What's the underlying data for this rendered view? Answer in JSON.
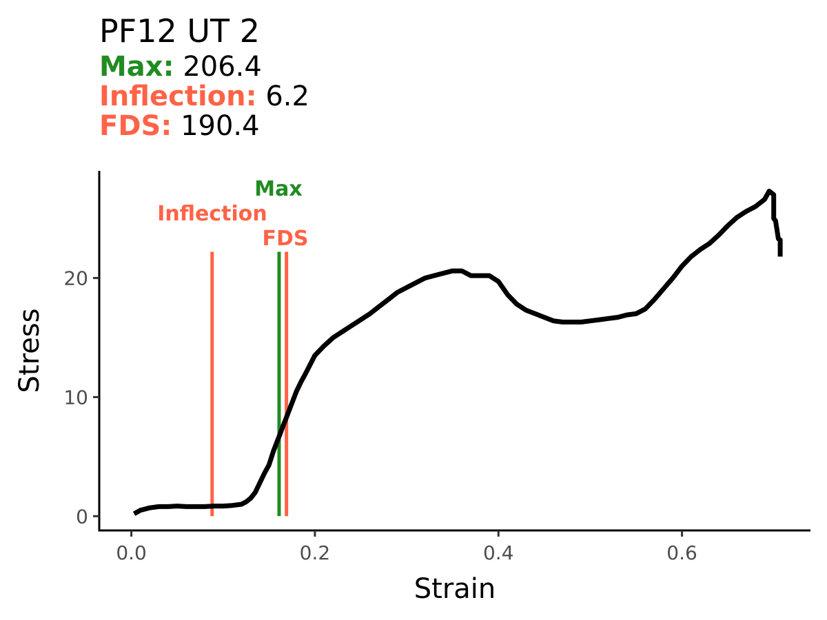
{
  "header": {
    "title": "PF12 UT 2",
    "metrics": [
      {
        "label": "Max:",
        "value": "206.4",
        "color": "#228B22"
      },
      {
        "label": "Inflection:",
        "value": "6.2",
        "color": "#FF6347"
      },
      {
        "label": "FDS:",
        "value": "190.4",
        "color": "#FF6347"
      }
    ]
  },
  "chart_data": {
    "type": "line",
    "title": "PF12 UT 2",
    "xlabel": "Strain",
    "ylabel": "Stress",
    "xlim": [
      -0.035,
      0.74
    ],
    "ylim": [
      -1.2,
      29
    ],
    "xticks": [
      0.0,
      0.2,
      0.4,
      0.6
    ],
    "xtick_labels": [
      "0.0",
      "0.2",
      "0.4",
      "0.6"
    ],
    "yticks": [
      0,
      10,
      20
    ],
    "ytick_labels": [
      "0",
      "10",
      "20"
    ],
    "grid": false,
    "series": [
      {
        "color": "#000000",
        "x": [
          0.003,
          0.01,
          0.02,
          0.03,
          0.04,
          0.05,
          0.06,
          0.07,
          0.08,
          0.09,
          0.1,
          0.11,
          0.12,
          0.125,
          0.13,
          0.135,
          0.14,
          0.145,
          0.15,
          0.155,
          0.16,
          0.165,
          0.17,
          0.175,
          0.18,
          0.185,
          0.19,
          0.2,
          0.21,
          0.22,
          0.23,
          0.24,
          0.25,
          0.26,
          0.27,
          0.28,
          0.29,
          0.3,
          0.31,
          0.32,
          0.33,
          0.34,
          0.35,
          0.36,
          0.365,
          0.37,
          0.38,
          0.39,
          0.4,
          0.41,
          0.42,
          0.43,
          0.44,
          0.45,
          0.46,
          0.47,
          0.48,
          0.49,
          0.5,
          0.51,
          0.52,
          0.53,
          0.54,
          0.55,
          0.56,
          0.57,
          0.58,
          0.59,
          0.6,
          0.61,
          0.62,
          0.63,
          0.64,
          0.65,
          0.66,
          0.67,
          0.68,
          0.69,
          0.695,
          0.7,
          0.7,
          0.702,
          0.705,
          0.707,
          0.707
        ],
        "y": [
          0.2,
          0.5,
          0.7,
          0.8,
          0.8,
          0.85,
          0.8,
          0.8,
          0.8,
          0.85,
          0.85,
          0.9,
          1.0,
          1.2,
          1.5,
          2.0,
          2.8,
          3.6,
          4.3,
          5.5,
          6.5,
          7.5,
          8.5,
          9.5,
          10.5,
          11.3,
          12.0,
          13.5,
          14.3,
          15.0,
          15.5,
          16.0,
          16.5,
          17.0,
          17.6,
          18.2,
          18.8,
          19.2,
          19.6,
          20.0,
          20.2,
          20.4,
          20.6,
          20.6,
          20.4,
          20.2,
          20.2,
          20.2,
          19.7,
          18.6,
          17.8,
          17.3,
          17.0,
          16.7,
          16.4,
          16.3,
          16.3,
          16.3,
          16.4,
          16.5,
          16.6,
          16.7,
          16.9,
          17.0,
          17.4,
          18.2,
          19.1,
          20.0,
          21.0,
          21.8,
          22.4,
          22.9,
          23.6,
          24.4,
          25.1,
          25.6,
          26.0,
          26.6,
          27.3,
          27.0,
          25.0,
          24.8,
          23.3,
          23.2,
          21.8
        ]
      }
    ],
    "vlines": [
      {
        "label": "Inflection",
        "x": 0.088,
        "color": "#FF6347"
      },
      {
        "label": "Max",
        "x": 0.161,
        "color": "#228B22"
      },
      {
        "label": "FDS",
        "x": 0.169,
        "color": "#FF6347"
      }
    ]
  }
}
